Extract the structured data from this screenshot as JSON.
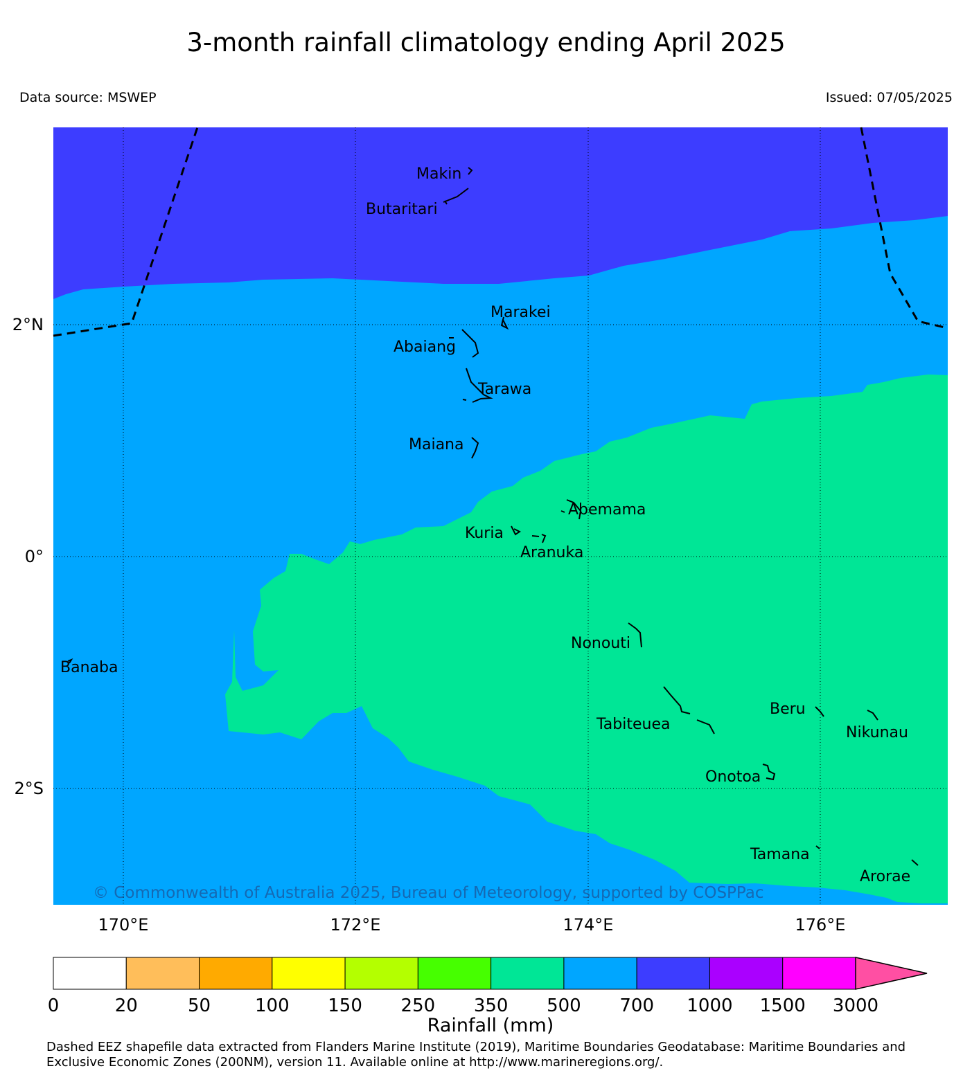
{
  "title": "3-month rainfall climatology ending April 2025",
  "data_source": "Data source: MSWEP",
  "issued": "Issued: 07/05/2025",
  "colors": {
    "c700_1000": "#3d3dff",
    "c500_700": "#00a6ff",
    "c350_500": "#00e696",
    "boundary": "#000000"
  },
  "map": {
    "lat_ticks": [
      "2°N",
      "0°",
      "2°S"
    ],
    "lon_ticks": [
      "170°E",
      "172°E",
      "174°E",
      "176°E"
    ],
    "places": [
      "Makin",
      "Butaritari",
      "Marakei",
      "Abaiang",
      "Tarawa",
      "Maiana",
      "Abemama",
      "Kuria",
      "Aranuka",
      "Nonouti",
      "Banaba",
      "Beru",
      "Tabiteuea",
      "Nikunau",
      "Onotoa",
      "Tamana",
      "Arorae"
    ],
    "copyright": "© Commonwealth of Australia 2025, Bureau of Meteorology, supported by COSPPac"
  },
  "colorbar": {
    "label": "Rainfall (mm)",
    "ticks": [
      "0",
      "20",
      "50",
      "100",
      "150",
      "250",
      "350",
      "500",
      "700",
      "1000",
      "1500",
      "3000"
    ],
    "colors": [
      "#ffffff",
      "#ffbe5a",
      "#ffaa00",
      "#ffff00",
      "#b4ff00",
      "#46ff00",
      "#00e696",
      "#00a6ff",
      "#3d3dff",
      "#aa00ff",
      "#ff00ff"
    ],
    "extend_color": "#ff4fa3"
  },
  "footnote": {
    "line1": "Dashed EEZ shapefile data extracted from Flanders Marine Institute (2019), Maritime Boundaries Geodatabase: Maritime Boundaries and",
    "line2": "Exclusive Economic Zones (200NM), version 11. Available online at http://www.marineregions.org/."
  }
}
